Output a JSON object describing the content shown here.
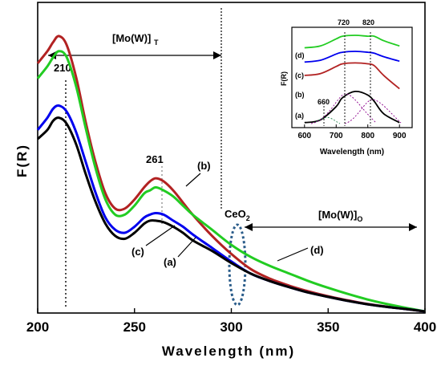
{
  "chart_data": [
    {
      "type": "line",
      "xlabel": "Wavelength (nm)",
      "ylabel": "F(R)",
      "xlim": [
        200,
        400
      ],
      "xticks": [
        "200",
        "250",
        "300",
        "350",
        "400"
      ],
      "yticks_shown": false,
      "grid": false,
      "series": [
        {
          "name": "(a)",
          "color": "#000000",
          "x": [
            200,
            205,
            208,
            211,
            215,
            220,
            225,
            230,
            235,
            240,
            245,
            250,
            255,
            258,
            261,
            265,
            270,
            275,
            280,
            290,
            300,
            310,
            320,
            330,
            340,
            350,
            360,
            370,
            380,
            390,
            400
          ],
          "y": [
            0.57,
            0.6,
            0.63,
            0.64,
            0.62,
            0.55,
            0.45,
            0.36,
            0.29,
            0.25,
            0.24,
            0.26,
            0.29,
            0.3,
            0.3,
            0.295,
            0.28,
            0.26,
            0.235,
            0.2,
            0.16,
            0.125,
            0.1,
            0.08,
            0.062,
            0.048,
            0.035,
            0.024,
            0.015,
            0.008,
            0.0
          ]
        },
        {
          "name": "(b)",
          "color": "#b22222",
          "x": [
            200,
            205,
            208,
            211,
            215,
            220,
            225,
            230,
            235,
            240,
            245,
            250,
            255,
            258,
            261,
            265,
            270,
            275,
            280,
            290,
            300,
            310,
            320,
            330,
            340,
            350,
            360,
            370,
            380,
            390,
            400
          ],
          "y": [
            0.82,
            0.86,
            0.89,
            0.91,
            0.88,
            0.77,
            0.62,
            0.49,
            0.39,
            0.34,
            0.34,
            0.37,
            0.41,
            0.43,
            0.44,
            0.43,
            0.4,
            0.36,
            0.32,
            0.25,
            0.19,
            0.14,
            0.108,
            0.085,
            0.066,
            0.05,
            0.037,
            0.025,
            0.016,
            0.008,
            0.0
          ]
        },
        {
          "name": "(c)",
          "color": "#0000ee",
          "x": [
            200,
            205,
            208,
            211,
            215,
            220,
            225,
            230,
            235,
            240,
            245,
            250,
            255,
            258,
            261,
            265,
            270,
            275,
            280,
            290,
            300,
            310,
            320,
            330,
            340,
            350,
            360,
            370,
            380,
            390,
            400
          ],
          "y": [
            0.6,
            0.64,
            0.67,
            0.68,
            0.66,
            0.59,
            0.49,
            0.39,
            0.31,
            0.27,
            0.26,
            0.28,
            0.31,
            0.32,
            0.325,
            0.32,
            0.3,
            0.28,
            0.255,
            0.21,
            0.165,
            0.125,
            0.1,
            0.08,
            0.062,
            0.048,
            0.035,
            0.024,
            0.015,
            0.008,
            0.0
          ]
        },
        {
          "name": "(d)",
          "color": "#22cc22",
          "x": [
            200,
            205,
            208,
            211,
            215,
            220,
            225,
            230,
            235,
            240,
            245,
            250,
            255,
            258,
            261,
            265,
            270,
            275,
            280,
            290,
            300,
            310,
            320,
            330,
            340,
            350,
            360,
            370,
            380,
            390,
            400
          ],
          "y": [
            0.77,
            0.81,
            0.84,
            0.86,
            0.84,
            0.74,
            0.6,
            0.47,
            0.37,
            0.32,
            0.32,
            0.35,
            0.39,
            0.4,
            0.41,
            0.4,
            0.38,
            0.35,
            0.32,
            0.27,
            0.22,
            0.18,
            0.15,
            0.125,
            0.1,
            0.078,
            0.058,
            0.04,
            0.025,
            0.012,
            0.0
          ]
        }
      ],
      "annotations": {
        "peak_210": "210",
        "peak_261": "261",
        "region_T": "[Mo(W)]T",
        "region_O": "[Mo(W)]O",
        "ceo2": "CeO2",
        "label_a": "(a)",
        "label_b": "(b)",
        "label_c": "(c)",
        "label_d": "(d)"
      }
    },
    {
      "type": "line",
      "title": "inset",
      "xlabel": "Wavelength (nm)",
      "ylabel": "F(R)",
      "xlim": [
        560,
        940
      ],
      "xticks": [
        "600",
        "700",
        "800",
        "900"
      ],
      "markers": [
        "720",
        "820",
        "660"
      ],
      "series_labels": [
        "(d)",
        "(c)",
        "(b)",
        "(a)"
      ],
      "series": [
        {
          "name": "(d)",
          "color": "#22cc22",
          "x": [
            600,
            650,
            700,
            720,
            760,
            800,
            820,
            850,
            900
          ],
          "y": [
            0.86,
            0.88,
            0.96,
            0.99,
            1.0,
            0.99,
            0.99,
            0.94,
            0.88
          ]
        },
        {
          "name": "(c)",
          "color": "#0000ee",
          "x": [
            600,
            650,
            700,
            720,
            760,
            800,
            820,
            850,
            900
          ],
          "y": [
            0.7,
            0.72,
            0.79,
            0.81,
            0.82,
            0.81,
            0.8,
            0.76,
            0.71
          ]
        },
        {
          "name": "(b)",
          "color": "#b22222",
          "x": [
            600,
            650,
            700,
            720,
            760,
            800,
            820,
            850,
            900
          ],
          "y": [
            0.55,
            0.57,
            0.65,
            0.68,
            0.69,
            0.68,
            0.66,
            0.55,
            0.4
          ]
        },
        {
          "name": "(a)",
          "color": "#000000",
          "x": [
            600,
            650,
            700,
            720,
            760,
            800,
            820,
            850,
            900
          ],
          "y": [
            0.02,
            0.05,
            0.2,
            0.3,
            0.37,
            0.33,
            0.26,
            0.12,
            0.02
          ]
        }
      ]
    }
  ]
}
